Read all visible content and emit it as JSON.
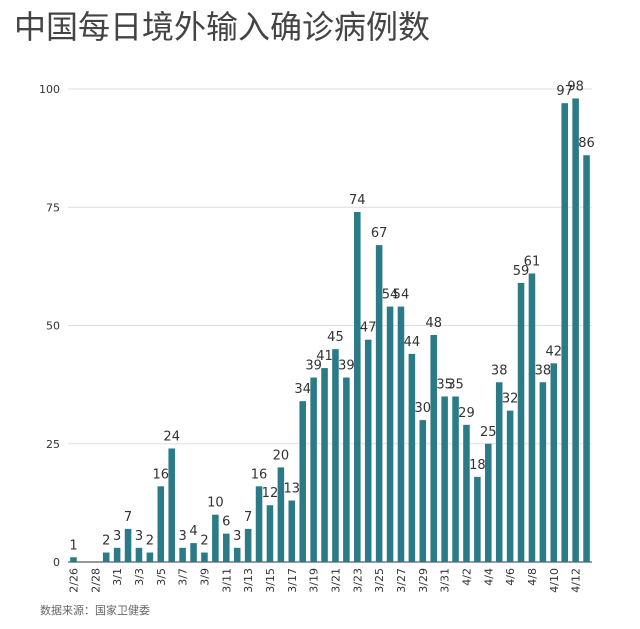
{
  "chart_data": {
    "type": "bar",
    "title": "中国每日境外输入确诊病例数",
    "source": "数据来源：国家卫健委",
    "categories": [
      "2/26",
      null,
      "2/28",
      null,
      "3/1",
      null,
      "3/3",
      null,
      "3/5",
      null,
      "3/7",
      null,
      "3/9",
      null,
      "3/11",
      null,
      "3/13",
      null,
      "3/15",
      null,
      "3/17",
      null,
      "3/19",
      null,
      "3/21",
      null,
      "3/23",
      null,
      "3/25",
      null,
      "3/27",
      null,
      "3/29",
      null,
      "3/31",
      null,
      "4/2",
      null,
      "4/4",
      null,
      "4/6",
      null,
      "4/8",
      null,
      "4/10",
      null,
      "4/12",
      null
    ],
    "values": [
      1,
      0,
      0,
      2,
      3,
      7,
      3,
      2,
      16,
      24,
      3,
      4,
      2,
      10,
      6,
      3,
      7,
      16,
      12,
      20,
      13,
      34,
      39,
      41,
      45,
      39,
      74,
      47,
      67,
      54,
      54,
      44,
      30,
      48,
      35,
      35,
      29,
      18,
      25,
      38,
      32,
      59,
      61,
      38,
      42,
      97,
      98,
      86
    ],
    "color": "#2b7a87",
    "label_color": "#3d8d9b",
    "ylim": [
      0,
      100
    ],
    "yticks": [
      0,
      25,
      50,
      75,
      100
    ],
    "grid": true
  }
}
